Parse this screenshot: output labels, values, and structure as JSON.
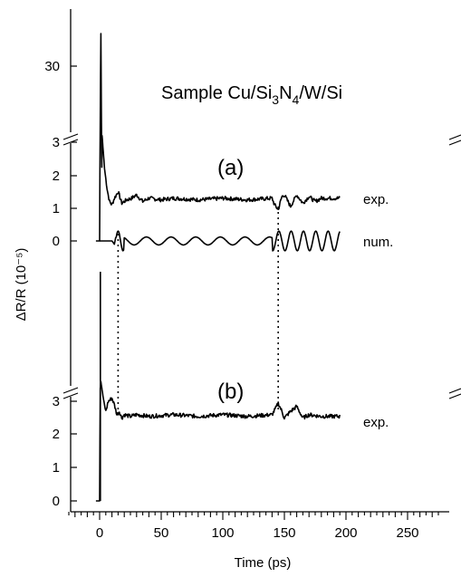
{
  "chart_data": {
    "type": "line",
    "title": "Sample Cu/Si3N4/W/Si",
    "title_parts": {
      "p1": "Sample Cu/Si",
      "s1": "3",
      "p2": "N",
      "s2": "4",
      "p3": "/W/Si"
    },
    "xlabel": "Time (ps)",
    "ylabel": "ΔR/R (10⁻⁵)",
    "xlim": [
      -30,
      280
    ],
    "x_ticks": [
      0,
      50,
      100,
      150,
      200,
      250
    ],
    "x_tick_labels": [
      "0",
      "50",
      "100",
      "150",
      "200",
      "250"
    ],
    "y_ticks_panel_top": [
      "30"
    ],
    "y_ticks_panel_a": [
      "3",
      "2",
      "1",
      "0"
    ],
    "y_ticks_panel_b": [
      "3",
      "2",
      "1",
      "0"
    ],
    "broken_y_axis": true,
    "panel_labels": {
      "a": "(a)",
      "b": "(b)"
    },
    "series": [
      {
        "name": "exp.",
        "panel": "a",
        "baseline": 1.25,
        "x": [
          -3,
          0,
          0.5,
          1,
          2,
          4,
          6,
          8,
          10,
          12,
          15,
          18,
          22,
          26,
          30,
          35,
          40,
          50,
          60,
          80,
          100,
          120,
          140,
          142,
          145,
          148,
          150,
          155,
          160,
          165,
          170,
          175,
          180,
          190,
          195
        ],
        "y": [
          0,
          0,
          20,
          36,
          3.2,
          2.2,
          1.6,
          1.2,
          1.1,
          1.3,
          1.5,
          1.15,
          1.25,
          1.3,
          1.4,
          1.2,
          1.3,
          1.25,
          1.3,
          1.25,
          1.3,
          1.25,
          1.3,
          1.1,
          0.95,
          1.35,
          1.4,
          1.05,
          1.4,
          1.15,
          1.35,
          1.2,
          1.3,
          1.3,
          1.3
        ]
      },
      {
        "name": "num.",
        "panel": "a",
        "x": [
          0,
          10,
          12,
          14,
          16,
          20,
          25,
          30,
          40,
          50,
          60,
          70,
          80,
          90,
          100,
          110,
          120,
          130,
          140,
          143,
          145,
          148,
          152,
          155,
          160,
          165,
          170,
          175,
          180,
          185,
          190,
          195
        ],
        "y": [
          0,
          0,
          -0.1,
          0.3,
          0.05,
          -0.3,
          0.1,
          0.15,
          -0.15,
          0.1,
          -0.1,
          0.1,
          -0.12,
          0.12,
          -0.1,
          0.1,
          -0.1,
          0.08,
          0.05,
          -0.25,
          -0.2,
          0.25,
          0.3,
          -0.2,
          0.35,
          -0.3,
          0.25,
          -0.2,
          0.15,
          -0.1,
          0.05,
          0.05
        ]
      },
      {
        "name": "exp.",
        "panel": "b",
        "x": [
          -3,
          0,
          0.5,
          1,
          3,
          5,
          7,
          10,
          12,
          14,
          16,
          18,
          20,
          25,
          30,
          40,
          60,
          80,
          100,
          120,
          140,
          143,
          145,
          148,
          150,
          155,
          160,
          165,
          170,
          180,
          195
        ],
        "y": [
          0,
          0,
          3.4,
          3.6,
          3.1,
          2.7,
          3.0,
          3.1,
          2.9,
          2.6,
          2.7,
          2.5,
          2.6,
          2.55,
          2.6,
          2.55,
          2.6,
          2.55,
          2.6,
          2.55,
          2.6,
          2.8,
          2.95,
          2.7,
          2.5,
          2.7,
          2.85,
          2.5,
          2.6,
          2.55,
          2.55
        ]
      }
    ],
    "series_labels": {
      "a_exp": "exp.",
      "a_num": "num.",
      "b_exp": "exp."
    },
    "dotted_markers_x": [
      15,
      145
    ],
    "grid": false,
    "legend": "inline labels at right"
  }
}
